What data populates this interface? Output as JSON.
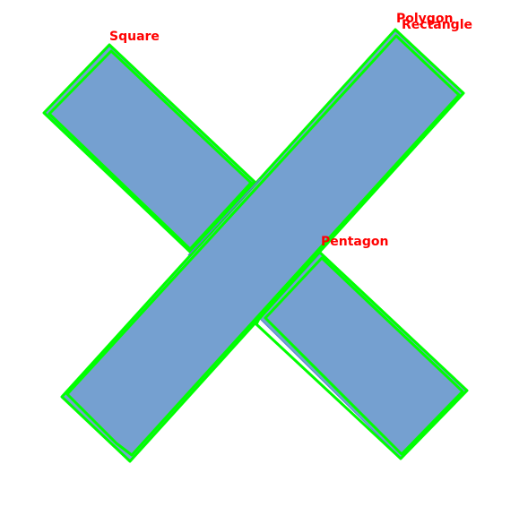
{
  "colors": {
    "background": "#ffffff",
    "shape_fill": "#75a0d0",
    "shape_edge": "#5a82c8",
    "contour": "#00ff00",
    "label": "#ff0000"
  },
  "shapes": [
    {
      "id": "square",
      "label": "Square"
    },
    {
      "id": "polygon",
      "label": "Polygon"
    },
    {
      "id": "rectangle",
      "label": "Rectangle"
    },
    {
      "id": "pentagon",
      "label": "Pentagon"
    }
  ]
}
